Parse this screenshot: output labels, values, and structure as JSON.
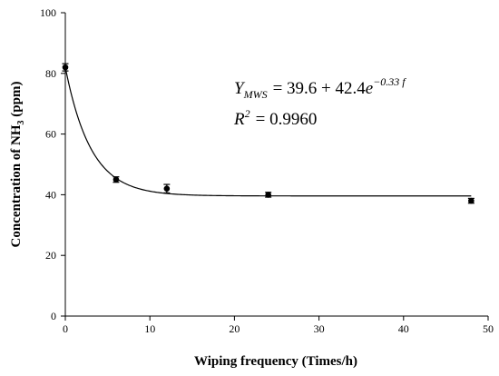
{
  "chart_data": {
    "type": "scatter",
    "xlabel": "Wiping frequency (Times/h)",
    "ylabel_main": "Concentration of NH",
    "ylabel_sub": "3",
    "ylabel_unit": " (ppm)",
    "xlim": [
      0,
      50
    ],
    "ylim": [
      0,
      100
    ],
    "xticks": [
      0,
      10,
      20,
      30,
      40,
      50
    ],
    "yticks": [
      0,
      20,
      40,
      60,
      80,
      100
    ],
    "grid": false,
    "legend": "none",
    "series": [
      {
        "x": [
          0,
          6,
          12,
          24,
          48
        ],
        "y": [
          82,
          45,
          42,
          40,
          38
        ],
        "error": [
          1.2,
          0.9,
          1.4,
          0.8,
          0.8
        ]
      }
    ],
    "fit": {
      "a": 39.6,
      "b": 42.4,
      "k": 0.33
    },
    "equation": {
      "y_symbol": "Y",
      "y_subscript": "MWS",
      "rhs": "= 39.6 + 42.4",
      "exp_base": "e",
      "exp_power": "−0.33 f",
      "r2_symbol": "R",
      "r2_sup": "2",
      "r2_rhs": "= 0.9960"
    },
    "colors": {
      "marker": "#000000",
      "axis": "#000000",
      "curve": "#000000"
    }
  }
}
